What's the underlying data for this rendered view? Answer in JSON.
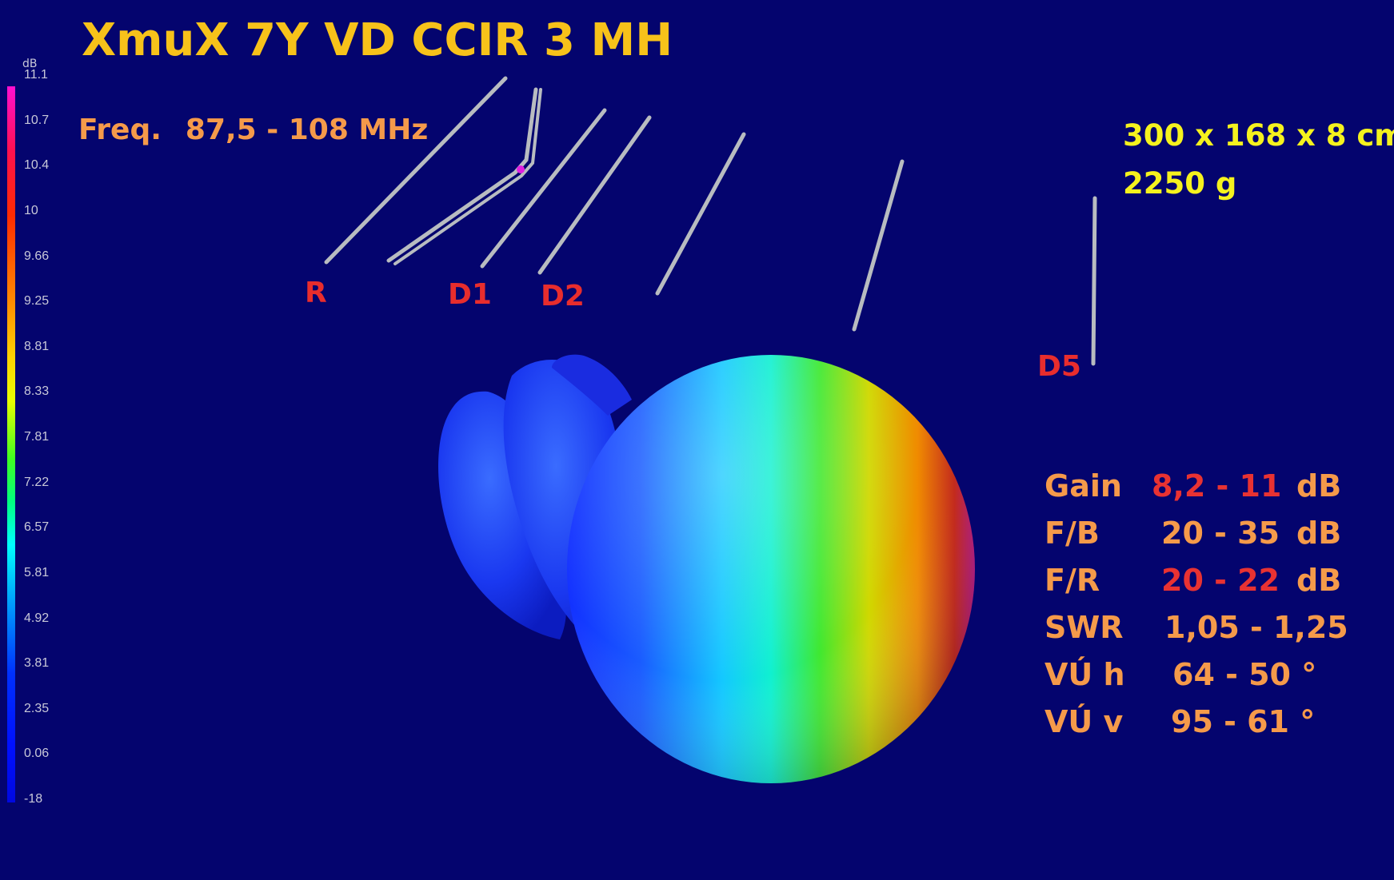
{
  "title": "XmuX 7Y VD CCIR 3 MH",
  "frequency": {
    "label": "Freq.",
    "value": "87,5 - 108 MHz"
  },
  "dimensions": {
    "size": "300 x 168 x 8 cm",
    "weight": "2250 g"
  },
  "element_labels": {
    "reflector": "R",
    "director1": "D1",
    "director2": "D2",
    "director5": "D5"
  },
  "scale": {
    "unit": "dB",
    "ticks": [
      "11.1",
      "10.7",
      "10.4",
      "10",
      "9.66",
      "9.25",
      "8.81",
      "8.33",
      "7.81",
      "7.22",
      "6.57",
      "5.81",
      "4.92",
      "3.81",
      "2.35",
      "0.06",
      "-18"
    ]
  },
  "specs": [
    {
      "key": "Gain",
      "value": "8,2 - 11",
      "unit": "dB",
      "value_color": "red"
    },
    {
      "key": "F/B",
      "value": "20 - 35",
      "unit": "dB",
      "value_color": "orange"
    },
    {
      "key": "F/R",
      "value": "20 - 22",
      "unit": "dB",
      "value_color": "red"
    },
    {
      "key": "SWR",
      "value": "1,05 - 1,25",
      "unit": "",
      "value_color": "orange"
    },
    {
      "key": "VÚ h",
      "value": "64 - 50 °",
      "unit": "",
      "value_color": "orange"
    },
    {
      "key": "VÚ v",
      "value": "95 - 61 °",
      "unit": "",
      "value_color": "orange"
    }
  ],
  "colors": {
    "background": "#04046e",
    "title": "#f7c21a",
    "orange": "#f59a4a",
    "red": "#e83232",
    "yellow": "#f5f21e"
  }
}
